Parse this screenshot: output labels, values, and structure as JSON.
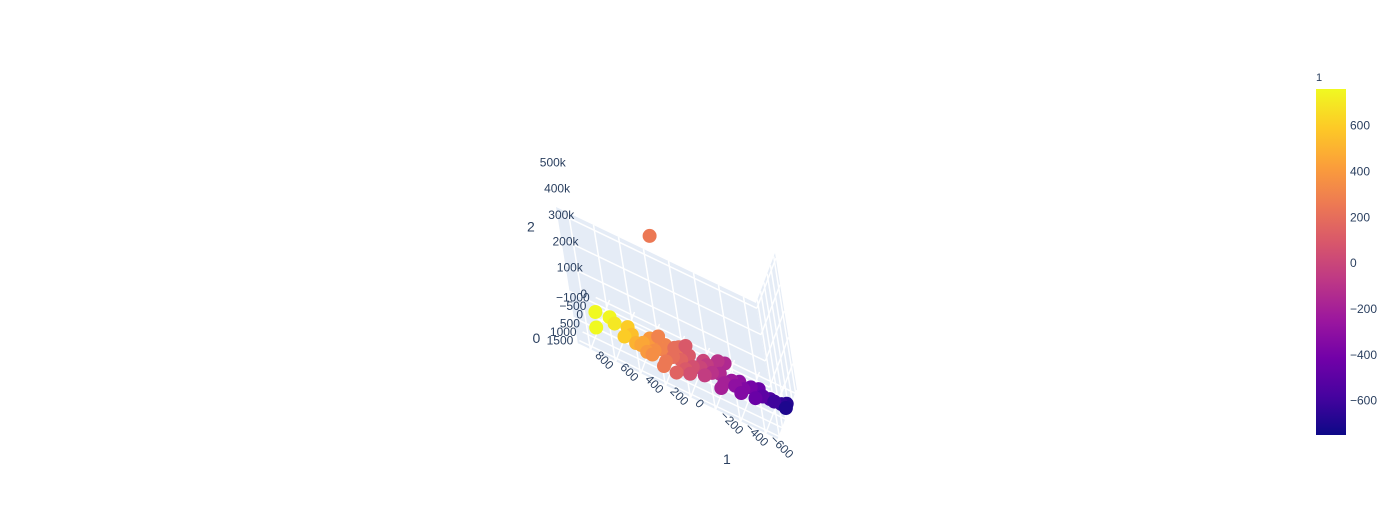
{
  "chart_data": {
    "type": "scatter",
    "dimension": "3d",
    "axes": {
      "x": {
        "title": "1",
        "range": [
          -700,
          900
        ],
        "ticks": [
          {
            "v": 800,
            "label": "800"
          },
          {
            "v": 600,
            "label": "600"
          },
          {
            "v": 400,
            "label": "400"
          },
          {
            "v": 200,
            "label": "200"
          },
          {
            "v": 0,
            "label": "0"
          },
          {
            "v": -200,
            "label": "−200"
          },
          {
            "v": -400,
            "label": "−400"
          },
          {
            "v": -600,
            "label": "−600"
          }
        ]
      },
      "y": {
        "title": "0",
        "range": [
          -1200,
          1700
        ],
        "ticks": [
          {
            "v": -1000,
            "label": "−1000"
          },
          {
            "v": -500,
            "label": "−500"
          },
          {
            "v": 0,
            "label": "0"
          },
          {
            "v": 500,
            "label": "500"
          },
          {
            "v": 1000,
            "label": "1000"
          },
          {
            "v": 1500,
            "label": "1500"
          }
        ]
      },
      "z": {
        "title": "2",
        "range": [
          0,
          520000
        ],
        "ticks": [
          {
            "v": 0,
            "label": "0"
          },
          {
            "v": 100000,
            "label": "100k"
          },
          {
            "v": 200000,
            "label": "200k"
          },
          {
            "v": 300000,
            "label": "300k"
          },
          {
            "v": 400000,
            "label": "400k"
          },
          {
            "v": 500000,
            "label": "500k"
          }
        ]
      }
    },
    "points": [
      {
        "x": 250,
        "y": 200,
        "z": 460000
      },
      {
        "x": 300,
        "y": 400,
        "z": 80000
      },
      {
        "x": 100,
        "y": 100,
        "z": 70000
      },
      {
        "x": 800,
        "y": 700,
        "z": 20000
      },
      {
        "x": 850,
        "y": -100,
        "z": 15000
      },
      {
        "x": 700,
        "y": -100,
        "z": 5000
      },
      {
        "x": 750,
        "y": -300,
        "z": 5000
      },
      {
        "x": 600,
        "y": -200,
        "z": 8000
      },
      {
        "x": 550,
        "y": 100,
        "z": 10000
      },
      {
        "x": 450,
        "y": 500,
        "z": 20000
      },
      {
        "x": 400,
        "y": 600,
        "z": 12000
      },
      {
        "x": 350,
        "y": 400,
        "z": 15000
      },
      {
        "x": 300,
        "y": 200,
        "z": 18000
      },
      {
        "x": 250,
        "y": 600,
        "z": 10000
      },
      {
        "x": 200,
        "y": 400,
        "z": 25000
      },
      {
        "x": 150,
        "y": 200,
        "z": 12000
      },
      {
        "x": 100,
        "y": 500,
        "z": 8000
      },
      {
        "x": 50,
        "y": 300,
        "z": 15000
      },
      {
        "x": 0,
        "y": 100,
        "z": 10000
      },
      {
        "x": -50,
        "y": 400,
        "z": 12000
      },
      {
        "x": -100,
        "y": 200,
        "z": 20000
      },
      {
        "x": -150,
        "y": 0,
        "z": 15000
      },
      {
        "x": -200,
        "y": 300,
        "z": 10000
      },
      {
        "x": -250,
        "y": 100,
        "z": 18000
      },
      {
        "x": -300,
        "y": -100,
        "z": 12000
      },
      {
        "x": -350,
        "y": 200,
        "z": 15000
      },
      {
        "x": -400,
        "y": 0,
        "z": 20000
      },
      {
        "x": -450,
        "y": -200,
        "z": 12000
      },
      {
        "x": -500,
        "y": 100,
        "z": 15000
      },
      {
        "x": -550,
        "y": 0,
        "z": 10000
      },
      {
        "x": -600,
        "y": 200,
        "z": 25000
      },
      {
        "x": -650,
        "y": 100,
        "z": 20000
      },
      {
        "x": -680,
        "y": -100,
        "z": 15000
      },
      {
        "x": -700,
        "y": 300,
        "z": 30000
      },
      {
        "x": -300,
        "y": 400,
        "z": 30000
      },
      {
        "x": 200,
        "y": -400,
        "z": 10000
      },
      {
        "x": 300,
        "y": -200,
        "z": 8000
      },
      {
        "x": 400,
        "y": 100,
        "z": 30000
      },
      {
        "x": 450,
        "y": 300,
        "z": 15000
      },
      {
        "x": 350,
        "y": 700,
        "z": 20000
      },
      {
        "x": 0,
        "y": -300,
        "z": 10000
      },
      {
        "x": -100,
        "y": -600,
        "z": 12000
      },
      {
        "x": -150,
        "y": -700,
        "z": 8000
      },
      {
        "x": 100,
        "y": -100,
        "z": 20000
      },
      {
        "x": 50,
        "y": 700,
        "z": 15000
      },
      {
        "x": 150,
        "y": 900,
        "z": 10000
      },
      {
        "x": 250,
        "y": 900,
        "z": 12000
      },
      {
        "x": -200,
        "y": 700,
        "z": 18000
      },
      {
        "x": 500,
        "y": 400,
        "z": 10000
      },
      {
        "x": 600,
        "y": 300,
        "z": 5000
      },
      {
        "x": 200,
        "y": 100,
        "z": 40000
      },
      {
        "x": -50,
        "y": 0,
        "z": 25000
      },
      {
        "x": 350,
        "y": 0,
        "z": 5000
      },
      {
        "x": -350,
        "y": 500,
        "z": 20000
      },
      {
        "x": -450,
        "y": 300,
        "z": 10000
      }
    ],
    "colorscale": {
      "title": "1",
      "range": [
        -750,
        760
      ],
      "ticks": [
        {
          "v": 600,
          "label": "600"
        },
        {
          "v": 400,
          "label": "400"
        },
        {
          "v": 200,
          "label": "200"
        },
        {
          "v": 0,
          "label": "0"
        },
        {
          "v": -200,
          "label": "−200"
        },
        {
          "v": -400,
          "label": "−400"
        },
        {
          "v": -600,
          "label": "−600"
        }
      ],
      "colors": [
        "#0d0887",
        "#46039f",
        "#7201a8",
        "#9c179e",
        "#bd3786",
        "#d8576b",
        "#ed7953",
        "#fb9f3a",
        "#fdca26",
        "#f0f921"
      ]
    }
  }
}
